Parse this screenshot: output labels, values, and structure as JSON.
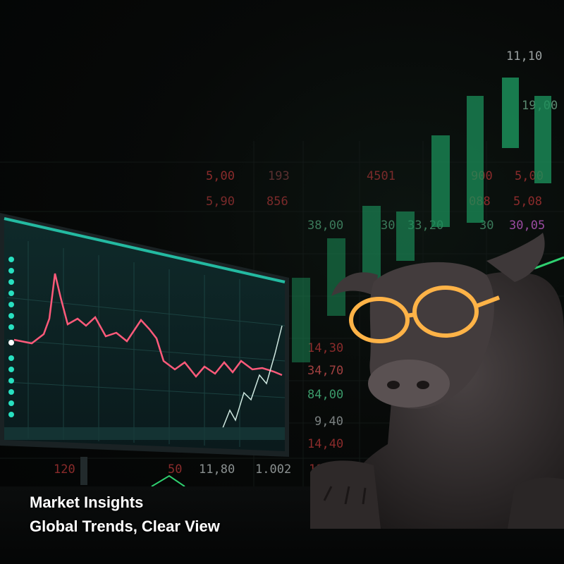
{
  "caption": {
    "line1": "Market Insights",
    "line2": "Global Trends, Clear View"
  },
  "background_numbers": [
    {
      "text": "11,10",
      "color": "#9aa0a0"
    },
    {
      "text": "19,00",
      "color": "#5a8a70"
    },
    {
      "text": "5,00",
      "color": "#8a2b2b"
    },
    {
      "text": "193",
      "color": "#5a3030"
    },
    {
      "text": "4501",
      "color": "#7a2a2a"
    },
    {
      "text": "900",
      "color": "#8a2b2b"
    },
    {
      "text": "5,00",
      "color": "#8a2b2b"
    },
    {
      "text": "5,90",
      "color": "#7a2a2a"
    },
    {
      "text": "856",
      "color": "#7a2a2a"
    },
    {
      "text": "088",
      "color": "#8a2b2b"
    },
    {
      "text": "5,08",
      "color": "#8a2b2b"
    },
    {
      "text": "38,00",
      "color": "#3b7a5a"
    },
    {
      "text": "30",
      "color": "#3b7a5a"
    },
    {
      "text": "33,20",
      "color": "#3b7a5a"
    },
    {
      "text": "30",
      "color": "#3b7a5a"
    },
    {
      "text": "30,05",
      "color": "#9a4aa0"
    },
    {
      "text": "14,30",
      "color": "#8a2b2b"
    },
    {
      "text": "34,70",
      "color": "#a04040"
    },
    {
      "text": "84,00",
      "color": "#3b9a6a"
    },
    {
      "text": "9,40",
      "color": "#7a8080"
    },
    {
      "text": "14,40",
      "color": "#8a2b2b"
    },
    {
      "text": "11,80",
      "color": "#8a9090"
    },
    {
      "text": "1.002",
      "color": "#8a9090"
    },
    {
      "text": "11,20",
      "color": "#8a2b2b"
    },
    {
      "text": "120",
      "color": "#8a2b2b"
    },
    {
      "text": "50",
      "color": "#8a2b2b"
    }
  ],
  "colors": {
    "candle_green": "#1fa86a",
    "chart_line": "#ff5a7a",
    "monitor_glow": "#28e0c0",
    "glasses": "#ffb347",
    "bull_body": "#3a3536"
  }
}
